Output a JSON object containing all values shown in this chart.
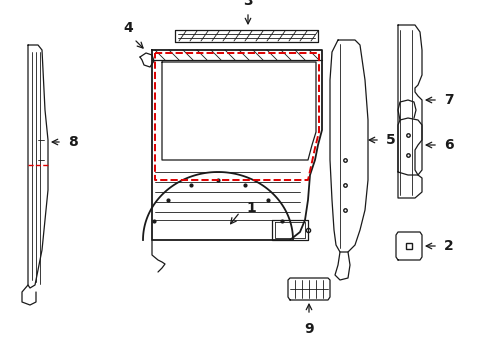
{
  "bg_color": "#ffffff",
  "line_color": "#1a1a1a",
  "dashed_color": "#dd0000",
  "label_color": "#000000",
  "label_fontsize": 10,
  "fig_w": 4.9,
  "fig_h": 3.6,
  "dpi": 100
}
